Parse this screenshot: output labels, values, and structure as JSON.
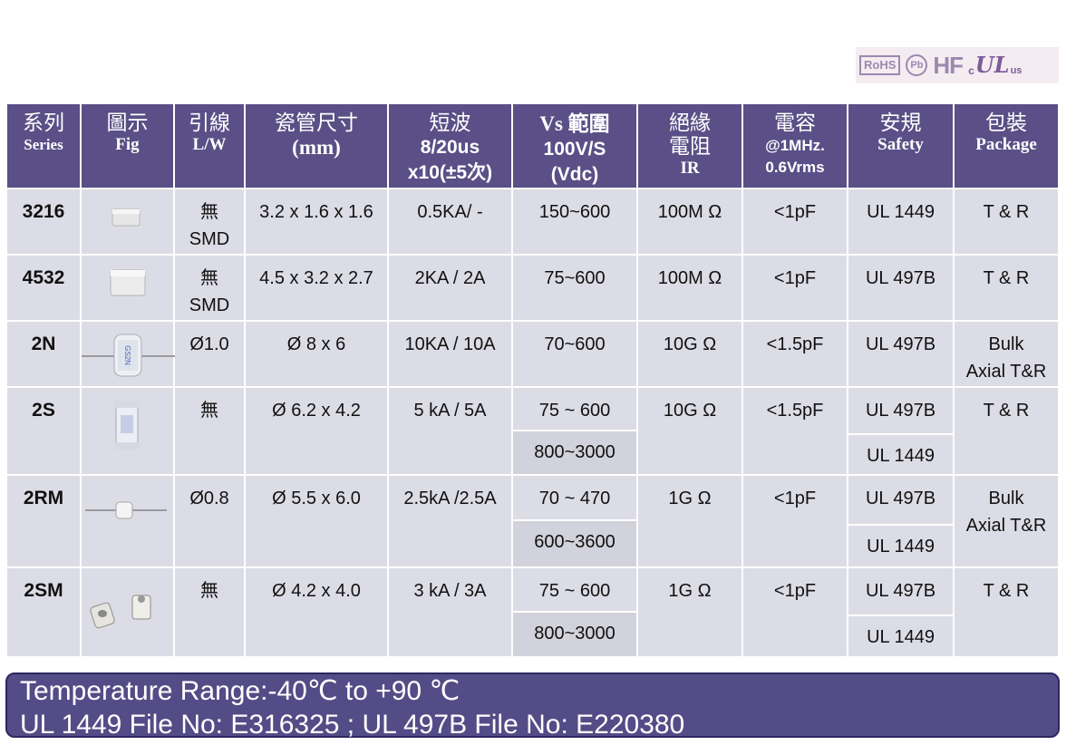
{
  "certifications": {
    "rohs": "RoHS",
    "pb": "Pb",
    "hf": "HF",
    "ul_c": "c",
    "ul_mark": "UL",
    "ul_us": "us"
  },
  "header": {
    "series_zh": "系列",
    "series_en": "Series",
    "fig_zh": "圖示",
    "fig_en": "Fig",
    "lw_zh": "引線",
    "lw_en": "L/W",
    "size_zh": "瓷管尺寸",
    "size_en": "(mm)",
    "surge_zh": "短波",
    "surge_l2": "8/20us",
    "surge_l3": "x10(±5次)",
    "vs_l1": "Vs 範圍",
    "vs_l2": "100V/S",
    "vs_l3": "(Vdc)",
    "ir_zh1": "絕緣",
    "ir_zh2": "電阻",
    "ir_en": "IR",
    "cap_zh": "電容",
    "cap_l2": "@1MHz.",
    "cap_l3": "0.6Vrms",
    "safety_zh": "安規",
    "safety_en": "Safety",
    "package_zh": "包裝",
    "package_en": "Package"
  },
  "rows": [
    {
      "series": "3216",
      "fig": "smd-chip-small",
      "lw": "無",
      "lw2": "SMD",
      "size": "3.2 x 1.6 x 1.6",
      "surge": "0.5KA/ -",
      "vs": [
        "150~600"
      ],
      "ir": "100M Ω",
      "cap": "<1pF",
      "safety": [
        "UL 1449"
      ],
      "package": "T & R",
      "package2": ""
    },
    {
      "series": "4532",
      "fig": "smd-chip-large",
      "lw": "無",
      "lw2": "SMD",
      "size": "4.5 x 3.2 x 2.7",
      "surge": "2KA / 2A",
      "vs": [
        "75~600"
      ],
      "ir": "100M Ω",
      "cap": "<1pF",
      "safety": [
        "UL 497B"
      ],
      "package": "T & R",
      "package2": ""
    },
    {
      "series": "2N",
      "fig": "axial-gdt",
      "lw": "Ø1.0",
      "lw2": "",
      "size": "Ø 8 x 6",
      "surge": "10KA / 10A",
      "vs": [
        "70~600"
      ],
      "ir": "10G Ω",
      "cap": "<1.5pF",
      "safety": [
        "UL 497B"
      ],
      "package": "Bulk",
      "package2": "Axial T&R"
    },
    {
      "series": "2S",
      "fig": "smd-gdt",
      "lw": "無",
      "lw2": "",
      "size": "Ø 6.2 x 4.2",
      "surge": "5 kA / 5A",
      "vs": [
        "75 ~ 600",
        "800~3000"
      ],
      "ir": "10G Ω",
      "cap": "<1.5pF",
      "safety": [
        "UL 497B",
        "UL 1449"
      ],
      "package": "T & R",
      "package2": ""
    },
    {
      "series": "2RM",
      "fig": "axial-mini",
      "lw": "Ø0.8",
      "lw2": "",
      "size": "Ø 5.5 x 6.0",
      "surge": "2.5kA /2.5A",
      "vs": [
        "70 ~ 470",
        "600~3600"
      ],
      "ir": "1G Ω",
      "cap": "<1pF",
      "safety": [
        "UL 497B",
        "UL 1449"
      ],
      "package": "Bulk",
      "package2": "Axial T&R"
    },
    {
      "series": "2SM",
      "fig": "smd-gdt-pair",
      "lw": "無",
      "lw2": "",
      "size": "Ø 4.2 x 4.0",
      "surge": "3 kA / 3A",
      "vs": [
        "75 ~ 600",
        "800~3000"
      ],
      "ir": "1G Ω",
      "cap": "<1pF",
      "safety": [
        "UL 497B",
        "UL 1449"
      ],
      "package": "T & R",
      "package2": ""
    }
  ],
  "footer": {
    "line1": "Temperature Range:-40℃ to +90 ℃",
    "line2": "UL 1449 File No: E316325 ; UL 497B File No: E220380"
  },
  "colors": {
    "header_bg": "#5a4f86",
    "cell_bg": "#dcdce6",
    "footer_bg": "#544c86",
    "badge": "#9a8ab0"
  }
}
